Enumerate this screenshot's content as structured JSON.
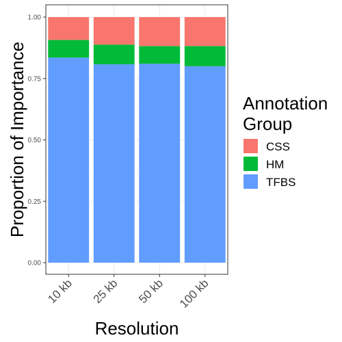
{
  "chart_data": {
    "type": "bar",
    "stacked": true,
    "categories": [
      "10 kb",
      "25 kb",
      "50 kb",
      "100 kb"
    ],
    "series": [
      {
        "name": "TFBS",
        "color": "#619CFF",
        "values": [
          0.835,
          0.808,
          0.81,
          0.8
        ]
      },
      {
        "name": "HM",
        "color": "#00BA38",
        "values": [
          0.072,
          0.08,
          0.072,
          0.082
        ]
      },
      {
        "name": "CSS",
        "color": "#F8766D",
        "values": [
          0.093,
          0.112,
          0.118,
          0.118
        ]
      }
    ],
    "xlabel": "Resolution",
    "ylabel": "Proportion of Importance",
    "ylim": [
      0,
      1
    ],
    "yticks": [
      "0.00",
      "0.25",
      "0.50",
      "0.75",
      "1.00"
    ],
    "legend": {
      "title_lines": [
        "Annotation",
        "Group"
      ],
      "placement": "right",
      "entries": [
        "CSS",
        "HM",
        "TFBS"
      ]
    },
    "grid": true,
    "theme": "bw"
  }
}
